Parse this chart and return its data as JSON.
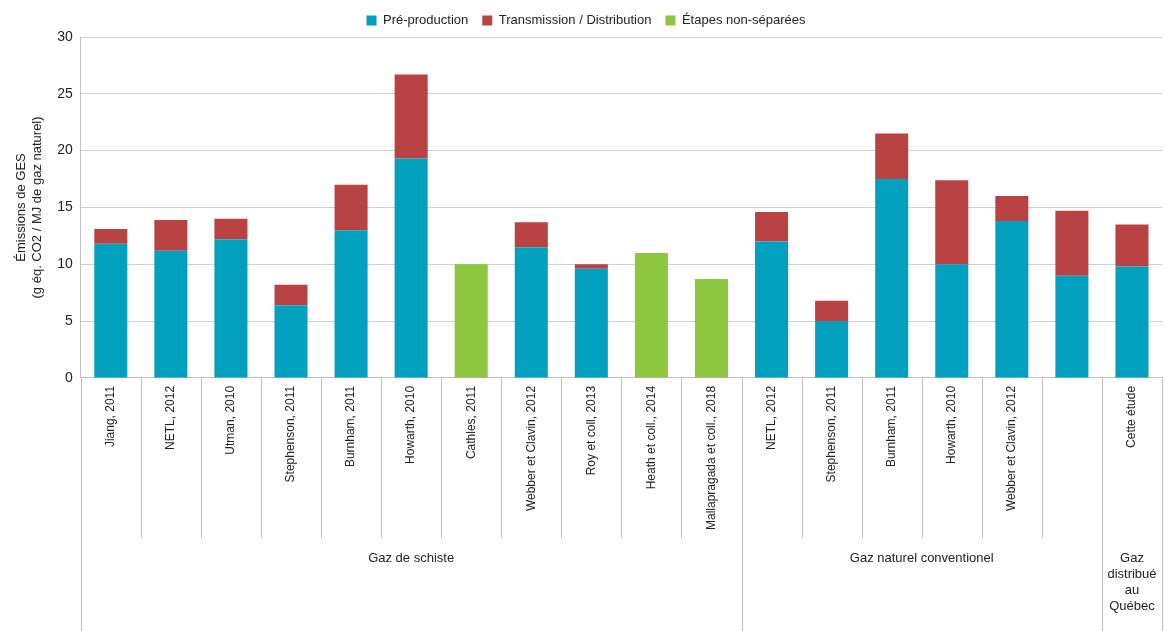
{
  "chart_data": {
    "type": "bar",
    "stacked": true,
    "ylabel": "Émissions de GES\n(g éq. CO2 / MJ de gaz naturel)",
    "categories": [
      "Jiang, 2011",
      "NETL, 2012",
      "Utman, 2010",
      "Stephenson, 2011",
      "Burnham, 2011",
      "Howarth, 2010",
      "Cathles, 2011",
      "Webber et Clavin, 2012",
      "Roy et coll, 2013",
      "Heath et coll., 2014",
      "Mallapragada et coll., 2018",
      "NETL, 2012",
      "Stephenson, 2011",
      "Burnham, 2011",
      "Howarth, 2010",
      "Webber et Clavin, 2012",
      null,
      "Cette étude"
    ],
    "series": [
      {
        "name": "Pré-production",
        "color": "#00a0be",
        "values": [
          11.8,
          11.2,
          12.2,
          6.4,
          13.0,
          19.3,
          null,
          11.5,
          9.6,
          null,
          null,
          12.0,
          5.0,
          17.5,
          10.0,
          13.8,
          9.0,
          9.8
        ]
      },
      {
        "name": "Transmission / Distribution",
        "color": "#b94343",
        "values": [
          1.3,
          2.7,
          1.8,
          1.8,
          4.0,
          7.4,
          null,
          2.2,
          0.4,
          null,
          null,
          2.6,
          1.8,
          4.0,
          7.4,
          2.2,
          5.7,
          3.7
        ]
      },
      {
        "name": "Étapes non-séparées",
        "color": "#8dc63f",
        "values": [
          null,
          null,
          null,
          null,
          null,
          null,
          10.0,
          null,
          null,
          11.0,
          8.7,
          null,
          null,
          null,
          null,
          null,
          null,
          null
        ]
      }
    ],
    "ylim": [
      0,
      30
    ],
    "yticks": [
      0,
      5,
      10,
      15,
      20,
      25,
      30
    ],
    "grid": "y",
    "legend": "top",
    "annotations": [
      "Gaz de schiste",
      "Gaz naturel conventionel",
      "Gaz distribué au Québec"
    ]
  }
}
